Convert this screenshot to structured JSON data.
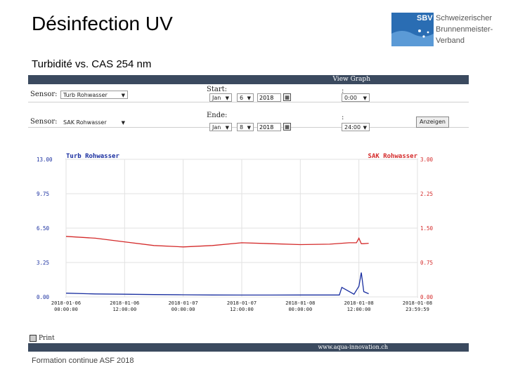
{
  "slide": {
    "title": "Désinfection UV",
    "subtitle": "Turbidité vs. CAS 254 nm",
    "footer": "Formation continue ASF 2018"
  },
  "logo": {
    "abbr": "SBV",
    "line1": "Schweizerischer",
    "line2": "Brunnenmeister-",
    "line3": "Verband"
  },
  "app": {
    "title": "View Graph",
    "row1": {
      "sensor_label": "Sensor:",
      "sensor_value": "Turb Rohwasser",
      "start_label": "Start:",
      "month": "Jan",
      "day": "6",
      "year": "2018",
      "time_sep": ":",
      "time": "0:00"
    },
    "row2": {
      "sensor_label": "Sensor:",
      "sensor_value": "SAK Rohwasser",
      "end_label": "Ende:",
      "month": "Jan",
      "day": "8",
      "year": "2018",
      "time_sep": ":",
      "time": "24:00",
      "button": "Anzeigen"
    },
    "print": "Print",
    "url": "www.aqua-innovation.ch"
  },
  "colors": {
    "left_series": "#1a2fa0",
    "right_series": "#d42a2a",
    "axis": "#333333",
    "bar": "#3b4a5f"
  },
  "chart_data": {
    "type": "line",
    "left_axis": {
      "label": "Turb Rohwasser",
      "ylim": [
        0,
        13
      ],
      "ticks": [
        "13.00",
        "9.75",
        "6.50",
        "3.25",
        "0.00"
      ]
    },
    "right_axis": {
      "label": "SAK Rohwasser",
      "ylim": [
        0,
        3
      ],
      "ticks": [
        "3.00",
        "2.25",
        "1.50",
        "0.75",
        "0.00"
      ]
    },
    "x_ticks": [
      [
        "2018-01-06",
        "00:00:00"
      ],
      [
        "2018-01-06",
        "12:00:00"
      ],
      [
        "2018-01-07",
        "00:00:00"
      ],
      [
        "2018-01-07",
        "12:00:00"
      ],
      [
        "2018-01-08",
        "00:00:00"
      ],
      [
        "2018-01-08",
        "12:00:00"
      ],
      [
        "2018-01-08",
        "23:59:59"
      ]
    ],
    "x_hours": [
      0,
      12,
      24,
      36,
      48,
      60,
      72
    ],
    "grid": true,
    "series": [
      {
        "name": "SAK Rohwasser",
        "axis": "right",
        "x": [
          0,
          6,
          12,
          18,
          24,
          30,
          36,
          42,
          48,
          54,
          58,
          59.5,
          60,
          60.5,
          61,
          62
        ],
        "y": [
          1.32,
          1.28,
          1.2,
          1.12,
          1.09,
          1.12,
          1.18,
          1.16,
          1.14,
          1.15,
          1.18,
          1.18,
          1.28,
          1.16,
          1.16,
          1.17
        ]
      },
      {
        "name": "Turb Rohwasser",
        "axis": "left",
        "x": [
          0,
          6,
          12,
          18,
          24,
          30,
          36,
          42,
          48,
          54,
          56,
          56.5,
          59,
          60,
          60.5,
          61,
          62
        ],
        "y": [
          0.35,
          0.28,
          0.25,
          0.22,
          0.2,
          0.18,
          0.17,
          0.17,
          0.18,
          0.18,
          0.18,
          0.9,
          0.25,
          1.0,
          2.3,
          0.5,
          0.3
        ]
      }
    ]
  }
}
